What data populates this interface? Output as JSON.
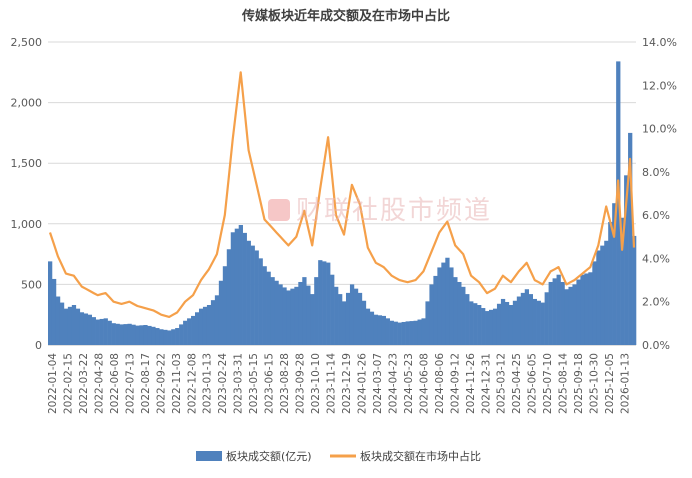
{
  "chart_data": {
    "type": "bar+line",
    "title": "传媒板块近年成交额及在市场中占比",
    "left_axis": {
      "ylim": [
        0,
        2500
      ],
      "ticks": [
        "0",
        "500",
        "1,000",
        "1,500",
        "2,000",
        "2,500"
      ]
    },
    "right_axis": {
      "ylim": [
        0,
        14
      ],
      "ticks": [
        "0.0%",
        "2.0%",
        "4.0%",
        "6.0%",
        "8.0%",
        "10.0%",
        "12.0%",
        "14.0%"
      ]
    },
    "x_ticks": [
      "2022-01-04",
      "2022-02-15",
      "2022-03-22",
      "2022-04-28",
      "2022-06-08",
      "2022-07-13",
      "2022-08-17",
      "2022-09-22",
      "2022-11-03",
      "2022-12-08",
      "2023-01-13",
      "2023-02-24",
      "2023-03-31",
      "2023-05-15",
      "2023-06-15",
      "2023-08-28",
      "2023-09-28",
      "2023-10-10",
      "2023-11-14",
      "2023-12-19",
      "2024-01-26",
      "2024-03-07",
      "2024-04-23",
      "2024-05-23",
      "2024-06-08",
      "2024-08-06",
      "2024-09-12",
      "2024-11-26",
      "2024-12-31",
      "2025-03-12",
      "2025-04-25",
      "2025-06-05",
      "2025-07-10",
      "2025-08-14",
      "2025-09-18",
      "2025-10-30",
      "2025-12-05",
      "2026-01-13"
    ],
    "series": [
      {
        "name": "板块成交额(亿元)",
        "kind": "bar",
        "axis": "left",
        "color": "#4f81bd",
        "points": [
          [
            0,
            690
          ],
          [
            2,
            400
          ],
          [
            4,
            300
          ],
          [
            6,
            330
          ],
          [
            8,
            270
          ],
          [
            10,
            250
          ],
          [
            12,
            210
          ],
          [
            14,
            220
          ],
          [
            16,
            180
          ],
          [
            18,
            170
          ],
          [
            20,
            175
          ],
          [
            22,
            160
          ],
          [
            24,
            165
          ],
          [
            26,
            150
          ],
          [
            28,
            130
          ],
          [
            30,
            120
          ],
          [
            32,
            140
          ],
          [
            34,
            200
          ],
          [
            36,
            240
          ],
          [
            38,
            300
          ],
          [
            40,
            330
          ],
          [
            42,
            410
          ],
          [
            44,
            650
          ],
          [
            46,
            930
          ],
          [
            48,
            990
          ],
          [
            50,
            860
          ],
          [
            52,
            780
          ],
          [
            54,
            650
          ],
          [
            56,
            560
          ],
          [
            58,
            500
          ],
          [
            60,
            450
          ],
          [
            62,
            480
          ],
          [
            64,
            560
          ],
          [
            66,
            420
          ],
          [
            68,
            700
          ],
          [
            70,
            680
          ],
          [
            72,
            480
          ],
          [
            74,
            360
          ],
          [
            76,
            500
          ],
          [
            78,
            430
          ],
          [
            80,
            300
          ],
          [
            82,
            250
          ],
          [
            84,
            240
          ],
          [
            86,
            200
          ],
          [
            88,
            185
          ],
          [
            90,
            195
          ],
          [
            92,
            200
          ],
          [
            94,
            220
          ],
          [
            96,
            500
          ],
          [
            98,
            640
          ],
          [
            100,
            720
          ],
          [
            102,
            560
          ],
          [
            104,
            480
          ],
          [
            106,
            360
          ],
          [
            108,
            330
          ],
          [
            110,
            280
          ],
          [
            112,
            300
          ],
          [
            114,
            380
          ],
          [
            116,
            330
          ],
          [
            118,
            400
          ],
          [
            120,
            460
          ],
          [
            122,
            380
          ],
          [
            124,
            350
          ],
          [
            126,
            520
          ],
          [
            128,
            580
          ],
          [
            130,
            460
          ],
          [
            132,
            500
          ],
          [
            134,
            580
          ],
          [
            136,
            600
          ],
          [
            138,
            780
          ],
          [
            140,
            860
          ],
          [
            142,
            1170
          ],
          [
            143,
            2340
          ],
          [
            144,
            1050
          ],
          [
            146,
            1750
          ],
          [
            147,
            900
          ]
        ]
      },
      {
        "name": "板块成交额在市场中占比",
        "kind": "line",
        "axis": "right",
        "color": "#f5a04a",
        "points": [
          [
            0,
            5.2
          ],
          [
            2,
            4.1
          ],
          [
            4,
            3.3
          ],
          [
            6,
            3.2
          ],
          [
            8,
            2.7
          ],
          [
            10,
            2.5
          ],
          [
            12,
            2.3
          ],
          [
            14,
            2.4
          ],
          [
            16,
            2.0
          ],
          [
            18,
            1.9
          ],
          [
            20,
            2.0
          ],
          [
            22,
            1.8
          ],
          [
            24,
            1.7
          ],
          [
            26,
            1.6
          ],
          [
            28,
            1.4
          ],
          [
            30,
            1.3
          ],
          [
            32,
            1.5
          ],
          [
            34,
            2.0
          ],
          [
            36,
            2.3
          ],
          [
            38,
            3.0
          ],
          [
            40,
            3.5
          ],
          [
            42,
            4.2
          ],
          [
            44,
            6.0
          ],
          [
            46,
            9.5
          ],
          [
            48,
            12.6
          ],
          [
            50,
            9.0
          ],
          [
            52,
            7.4
          ],
          [
            54,
            5.8
          ],
          [
            56,
            5.4
          ],
          [
            58,
            5.0
          ],
          [
            60,
            4.6
          ],
          [
            62,
            5.0
          ],
          [
            64,
            6.2
          ],
          [
            66,
            4.6
          ],
          [
            68,
            7.2
          ],
          [
            70,
            9.6
          ],
          [
            72,
            6.0
          ],
          [
            74,
            5.1
          ],
          [
            76,
            7.4
          ],
          [
            78,
            6.5
          ],
          [
            80,
            4.5
          ],
          [
            82,
            3.8
          ],
          [
            84,
            3.6
          ],
          [
            86,
            3.2
          ],
          [
            88,
            3.0
          ],
          [
            90,
            2.9
          ],
          [
            92,
            3.0
          ],
          [
            94,
            3.4
          ],
          [
            96,
            4.3
          ],
          [
            98,
            5.2
          ],
          [
            100,
            5.7
          ],
          [
            102,
            4.6
          ],
          [
            104,
            4.2
          ],
          [
            106,
            3.2
          ],
          [
            108,
            2.9
          ],
          [
            110,
            2.4
          ],
          [
            112,
            2.6
          ],
          [
            114,
            3.2
          ],
          [
            116,
            2.9
          ],
          [
            118,
            3.4
          ],
          [
            120,
            3.8
          ],
          [
            122,
            3.0
          ],
          [
            124,
            2.8
          ],
          [
            126,
            3.4
          ],
          [
            128,
            3.6
          ],
          [
            130,
            2.8
          ],
          [
            132,
            3.0
          ],
          [
            134,
            3.3
          ],
          [
            136,
            3.6
          ],
          [
            138,
            4.6
          ],
          [
            140,
            6.4
          ],
          [
            142,
            5.0
          ],
          [
            143,
            7.6
          ],
          [
            144,
            4.4
          ],
          [
            146,
            8.6
          ],
          [
            147,
            4.5
          ]
        ]
      }
    ],
    "legend_position": "bottom-center",
    "grid": "horizontal"
  },
  "watermark": {
    "text": "财联社股市频道"
  }
}
